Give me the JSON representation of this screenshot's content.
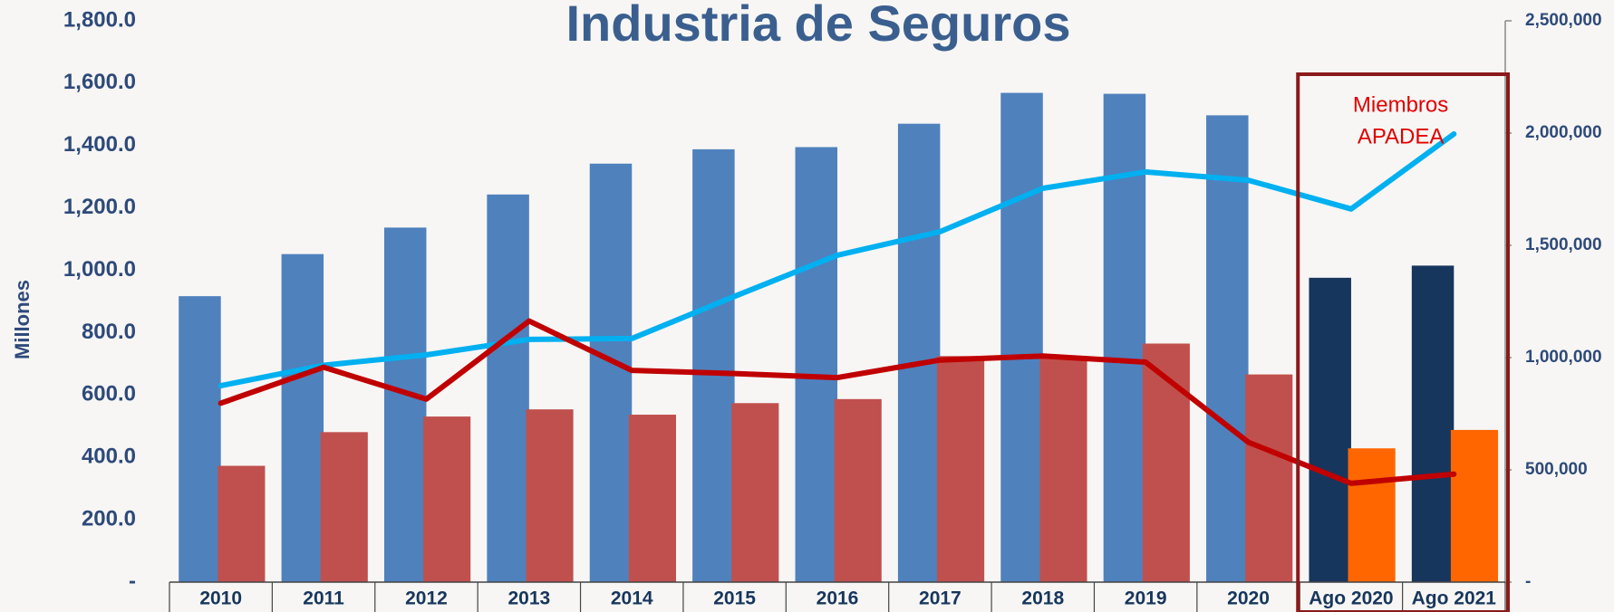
{
  "chart_data": {
    "type": "bar_line",
    "title": "Industria de Seguros",
    "y_label": "Millones",
    "annotation": [
      "Miembros",
      "APADEA"
    ],
    "categories": [
      "2010",
      "2011",
      "2012",
      "2013",
      "2014",
      "2015",
      "2016",
      "2017",
      "2018",
      "2019",
      "2020",
      "Ago 2020",
      "Ago 2021"
    ],
    "ylim": [
      0,
      1800
    ],
    "yticks": [
      {
        "value": 0,
        "label": "-"
      },
      {
        "value": 200,
        "label": "200.0"
      },
      {
        "value": 400,
        "label": "400.0"
      },
      {
        "value": 600,
        "label": "600.0"
      },
      {
        "value": 800,
        "label": "800.0"
      },
      {
        "value": 1000,
        "label": "1,000.0"
      },
      {
        "value": 1200,
        "label": "1,200.0"
      },
      {
        "value": 1400,
        "label": "1,400.0"
      },
      {
        "value": 1600,
        "label": "1,600.0"
      },
      {
        "value": 1800,
        "label": "1,800.0"
      }
    ],
    "y2lim": [
      0,
      2500000
    ],
    "y2ticks": [
      {
        "value": 0,
        "label": "-"
      },
      {
        "value": 500000,
        "label": "500,000"
      },
      {
        "value": 1000000,
        "label": "1,000,000"
      },
      {
        "value": 1500000,
        "label": "1,500,000"
      },
      {
        "value": 2000000,
        "label": "2,000,000"
      },
      {
        "value": 2500000,
        "label": "2,500,000"
      }
    ],
    "series": [
      {
        "kind": "bar",
        "color": "#4f81bd",
        "colors": [
          "#4f81bd",
          "#4f81bd",
          "#4f81bd",
          "#4f81bd",
          "#4f81bd",
          "#4f81bd",
          "#4f81bd",
          "#4f81bd",
          "#4f81bd",
          "#4f81bd",
          "#4f81bd",
          "#17365d",
          "#17365d"
        ],
        "values": [
          917,
          1052,
          1137,
          1243,
          1342,
          1388,
          1395,
          1470,
          1569,
          1566,
          1497,
          976,
          1015
        ]
      },
      {
        "kind": "bar",
        "color": "#c0504d",
        "colors": [
          "#c0504d",
          "#c0504d",
          "#c0504d",
          "#c0504d",
          "#c0504d",
          "#c0504d",
          "#c0504d",
          "#c0504d",
          "#c0504d",
          "#c0504d",
          "#c0504d",
          "#ff6600",
          "#ff6600"
        ],
        "values": [
          373,
          481,
          531,
          554,
          537,
          574,
          587,
          725,
          725,
          765,
          666,
          429,
          488
        ]
      },
      {
        "kind": "line",
        "axis": "y2",
        "color": "#00b0f0",
        "values": [
          875000,
          966000,
          1012000,
          1081000,
          1085000,
          1273000,
          1456000,
          1561000,
          1754000,
          1827000,
          1790000,
          1662000,
          1996000
        ]
      },
      {
        "kind": "line",
        "axis": "y2",
        "color": "#c00000",
        "values": [
          797000,
          957000,
          815000,
          1163000,
          943000,
          929000,
          911000,
          989000,
          1007000,
          980000,
          623000,
          440000,
          481000
        ]
      }
    ]
  }
}
